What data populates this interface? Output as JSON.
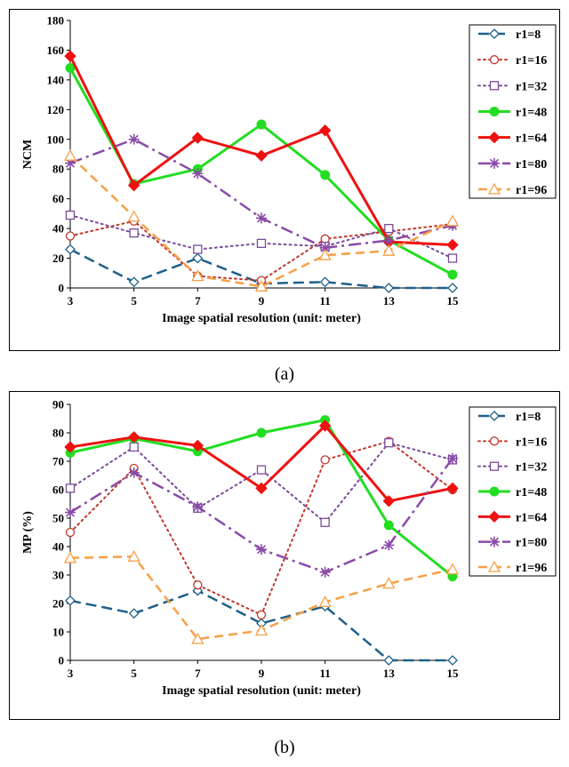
{
  "chart_data": [
    {
      "type": "line",
      "panel": "a",
      "caption": "(a)",
      "title": "",
      "xlabel": "Image spatial resolution (unit: meter)",
      "ylabel": "NCM",
      "x": [
        3,
        5,
        7,
        9,
        11,
        13,
        15
      ],
      "xlim": [
        3,
        15
      ],
      "ylim": [
        0,
        180
      ],
      "yticks": [
        0,
        20,
        40,
        60,
        80,
        100,
        120,
        140,
        160,
        180
      ],
      "legend_position": "right",
      "series": [
        {
          "name": "r1=8",
          "color": "#1f5f8b",
          "dash": "long-dash",
          "marker": "diamond-open",
          "width": 2.5,
          "values": [
            26,
            4,
            20,
            3,
            4,
            0,
            0
          ]
        },
        {
          "name": "r1=16",
          "color": "#c0392b",
          "dash": "dot",
          "marker": "circle-open",
          "width": 2,
          "values": [
            35,
            45,
            8,
            5,
            33,
            38,
            43
          ]
        },
        {
          "name": "r1=32",
          "color": "#7a4b9a",
          "dash": "dot",
          "marker": "square-open",
          "width": 2,
          "values": [
            49,
            37,
            26,
            30,
            28,
            40,
            20
          ]
        },
        {
          "name": "r1=48",
          "color": "#22dd22",
          "dash": "solid",
          "marker": "circle-filled",
          "width": 3,
          "values": [
            148,
            70,
            80,
            110,
            76,
            32,
            9
          ]
        },
        {
          "name": "r1=64",
          "color": "#ee1111",
          "dash": "solid",
          "marker": "diamond-filled",
          "width": 3,
          "values": [
            156,
            69,
            101,
            89,
            106,
            31,
            29
          ]
        },
        {
          "name": "r1=80",
          "color": "#8a4ba8",
          "dash": "dash-dot",
          "marker": "asterisk",
          "width": 2.5,
          "values": [
            84,
            100,
            77,
            47,
            27,
            32,
            42
          ]
        },
        {
          "name": "r1=96",
          "color": "#f7a048",
          "dash": "dash",
          "marker": "triangle-open",
          "width": 2.5,
          "values": [
            89,
            48,
            8,
            1,
            22,
            25,
            45
          ]
        }
      ]
    },
    {
      "type": "line",
      "panel": "b",
      "caption": "(b)",
      "title": "",
      "xlabel": "Image spatial resolution (unit: meter)",
      "ylabel": "MP (%)",
      "x": [
        3,
        5,
        7,
        9,
        11,
        13,
        15
      ],
      "xlim": [
        3,
        15
      ],
      "ylim": [
        0,
        90
      ],
      "yticks": [
        0,
        10,
        20,
        30,
        40,
        50,
        60,
        70,
        80,
        90
      ],
      "legend_position": "right",
      "series": [
        {
          "name": "r1=8",
          "color": "#1f5f8b",
          "dash": "long-dash",
          "marker": "diamond-open",
          "width": 2.5,
          "values": [
            21,
            16.5,
            24.5,
            13,
            19,
            0,
            0
          ]
        },
        {
          "name": "r1=16",
          "color": "#c0392b",
          "dash": "dot",
          "marker": "circle-open",
          "width": 2,
          "values": [
            45,
            67.5,
            26.5,
            16,
            70.5,
            77,
            60
          ]
        },
        {
          "name": "r1=32",
          "color": "#7a4b9a",
          "dash": "dot",
          "marker": "square-open",
          "width": 2,
          "values": [
            60.5,
            75,
            53.5,
            67,
            48.5,
            76.5,
            70.5
          ]
        },
        {
          "name": "r1=48",
          "color": "#22dd22",
          "dash": "solid",
          "marker": "circle-filled",
          "width": 3,
          "values": [
            73,
            78,
            73.5,
            80,
            84.5,
            47.5,
            29.5
          ]
        },
        {
          "name": "r1=64",
          "color": "#ee1111",
          "dash": "solid",
          "marker": "diamond-filled",
          "width": 3,
          "values": [
            75,
            78.5,
            75.5,
            60.5,
            82.5,
            56,
            60.5
          ]
        },
        {
          "name": "r1=80",
          "color": "#8a4ba8",
          "dash": "dash-dot",
          "marker": "asterisk",
          "width": 2.5,
          "values": [
            52,
            66,
            54,
            39,
            31,
            40.5,
            71
          ]
        },
        {
          "name": "r1=96",
          "color": "#f7a048",
          "dash": "dash",
          "marker": "triangle-open",
          "width": 2.5,
          "values": [
            36,
            36.5,
            7.5,
            10.5,
            20.5,
            27,
            32
          ]
        }
      ]
    }
  ]
}
